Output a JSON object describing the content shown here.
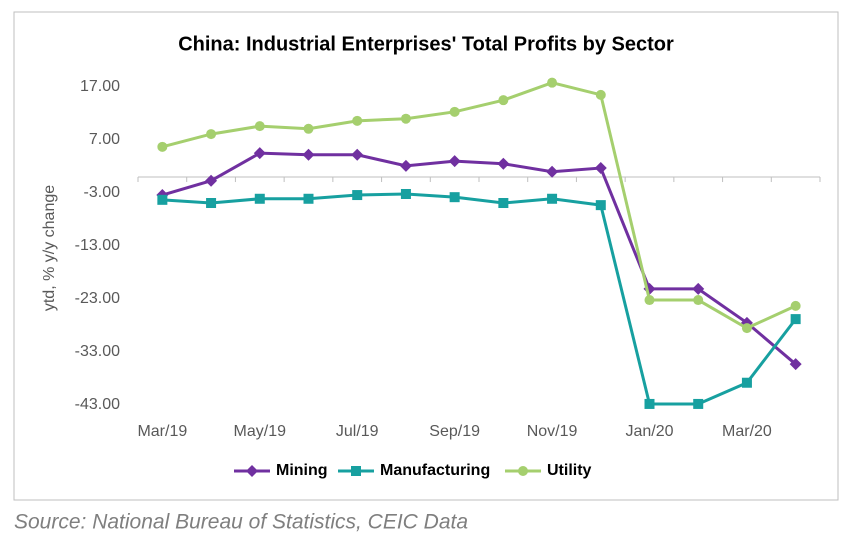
{
  "chart_data": {
    "type": "line",
    "title": "China: Industrial Enterprises' Total Profits by Sector",
    "y_label": "ytd, % y/y change",
    "source": "Source: National Bureau of Statistics, CEIC Data",
    "categories": [
      "Mar/19",
      null,
      "May/19",
      null,
      "Jul/19",
      null,
      "Sep/19",
      null,
      "Nov/19",
      null,
      "Jan/20",
      null,
      "Mar/20",
      null
    ],
    "series": [
      {
        "name": "Mining",
        "color": "#7030a0",
        "marker": "diamond",
        "values": [
          -3.4,
          -0.7,
          4.5,
          4.2,
          4.2,
          2.1,
          3.0,
          2.5,
          1.0,
          1.7,
          -21.1,
          -21.1,
          -27.5,
          -35.3
        ]
      },
      {
        "name": "Manufacturing",
        "color": "#17a0a0",
        "marker": "square",
        "values": [
          -4.3,
          -4.9,
          -4.1,
          -4.1,
          -3.4,
          -3.2,
          -3.8,
          -4.9,
          -4.1,
          -5.3,
          -42.8,
          -42.8,
          -38.8,
          -26.8
        ]
      },
      {
        "name": "Utility",
        "color": "#a5cf6e",
        "marker": "circle",
        "values": [
          5.7,
          8.1,
          9.6,
          9.1,
          10.6,
          11.0,
          12.3,
          14.5,
          17.8,
          15.5,
          -23.2,
          -23.2,
          -28.5,
          -24.3
        ]
      }
    ],
    "ylim": [
      -43,
      20
    ],
    "yticks": [
      {
        "value": 17,
        "label": "17.00"
      },
      {
        "value": 7,
        "label": "7.00"
      },
      {
        "value": -3,
        "label": "-3.00"
      },
      {
        "value": -13,
        "label": "-13.00"
      },
      {
        "value": -23,
        "label": "-23.00"
      },
      {
        "value": -33,
        "label": "-33.00"
      },
      {
        "value": -43,
        "label": "-43.00"
      }
    ],
    "legend": "bottom"
  }
}
